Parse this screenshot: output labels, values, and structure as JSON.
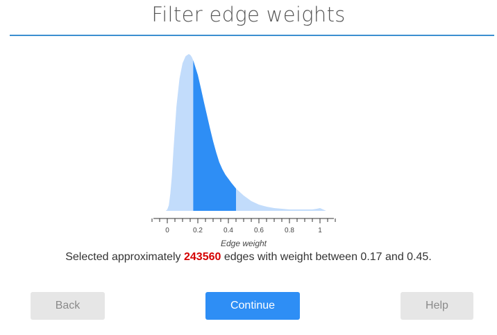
{
  "page": {
    "title": "Filter edge weights"
  },
  "summary": {
    "prefix": "Selected approximately",
    "count": "243560",
    "middle": "edges with weight between",
    "low": "0.17",
    "and": "and",
    "high": "0.45",
    "suffix": "."
  },
  "buttons": {
    "back": "Back",
    "continue": "Continue",
    "help": "Help"
  },
  "colors": {
    "accent_rule": "#3b8ed0",
    "full_distribution": "#c2dcfb",
    "selected_distribution": "#2e8ef5",
    "count_highlight": "#d40000"
  },
  "chart_data": {
    "type": "area",
    "xlabel": "Edge weight",
    "xlim": [
      -0.1,
      1.1
    ],
    "tick_labels": [
      "0",
      "0.2",
      "0.4",
      "0.6",
      "0.8",
      "1"
    ],
    "tick_values": [
      0,
      0.2,
      0.4,
      0.6,
      0.8,
      1.0
    ],
    "minor_step": 0.05,
    "selection": [
      0.17,
      0.45
    ],
    "density": {
      "x": [
        -0.01,
        0.0,
        0.01,
        0.02,
        0.03,
        0.04,
        0.06,
        0.08,
        0.1,
        0.12,
        0.14,
        0.15,
        0.16,
        0.17,
        0.18,
        0.2,
        0.22,
        0.24,
        0.26,
        0.28,
        0.3,
        0.32,
        0.34,
        0.36,
        0.38,
        0.4,
        0.42,
        0.45,
        0.48,
        0.5,
        0.55,
        0.6,
        0.65,
        0.7,
        0.75,
        0.8,
        0.85,
        0.9,
        0.95,
        0.98,
        1.0,
        1.02,
        1.04
      ],
      "y": [
        0,
        2,
        8,
        25,
        50,
        86,
        150,
        190,
        212,
        222,
        225,
        224,
        221,
        216,
        209,
        195,
        176,
        156,
        137,
        118,
        100,
        84,
        70,
        60,
        52,
        46,
        40,
        32,
        26,
        22,
        14,
        9,
        6,
        4,
        3,
        2,
        2,
        2,
        2,
        3,
        4,
        2,
        0
      ]
    }
  }
}
